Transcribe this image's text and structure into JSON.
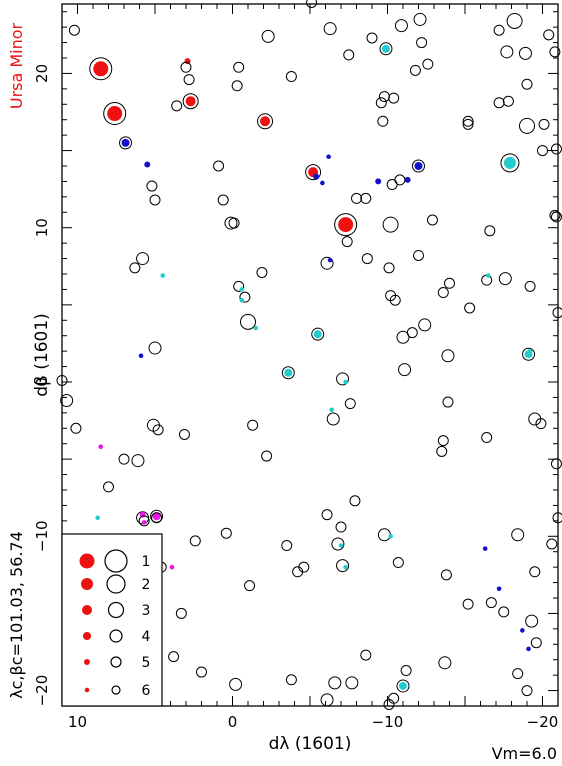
{
  "chart_data": {
    "type": "scatter",
    "title": "",
    "xlabel": "dλ (1601)",
    "ylabel": "dβ (1601)",
    "xlim": [
      11,
      -21
    ],
    "ylim": [
      -21,
      24.5
    ],
    "x_ticks": [
      10,
      0,
      -10,
      -20
    ],
    "y_ticks": [
      -20,
      -10,
      0,
      10,
      20
    ],
    "x_tick_labels": [
      "10",
      "0",
      "−10",
      "−20"
    ],
    "y_tick_labels": [
      "−20",
      "−10",
      "0",
      "10",
      "20"
    ],
    "grid": false,
    "constellation_label": "Ursa Minor",
    "center_label": "λc,βc=101.03,  56.74",
    "vm_label": "Vm=6.0",
    "colors": {
      "red": "#ee1111",
      "blue": "#1111cc",
      "cyan": "#22cccc",
      "magenta": "#ee11ee",
      "outline": "#000000"
    },
    "legend": {
      "placement": "bottom-left",
      "entries": [
        {
          "label": "1",
          "magnitude": 1
        },
        {
          "label": "2",
          "magnitude": 2
        },
        {
          "label": "3",
          "magnitude": 3
        },
        {
          "label": "4",
          "magnitude": 4
        },
        {
          "label": "5",
          "magnitude": 5
        },
        {
          "label": "6",
          "magnitude": 6
        }
      ]
    },
    "stars": [
      [
        10.2,
        22.8,
        5,
        null
      ],
      [
        8.5,
        20.3,
        1,
        "red"
      ],
      [
        8.5,
        20.3,
        5,
        "red"
      ],
      [
        7.6,
        17.4,
        1,
        "red"
      ],
      [
        6.9,
        15.5,
        4,
        "blue"
      ],
      [
        5.5,
        14.1,
        5,
        "blue"
      ],
      [
        5.2,
        12.7,
        5,
        null
      ],
      [
        5.0,
        11.8,
        5,
        null
      ],
      [
        2.9,
        20.8,
        5,
        "red"
      ],
      [
        3.0,
        20.4,
        5,
        null
      ],
      [
        2.8,
        19.6,
        5,
        null
      ],
      [
        3.6,
        17.9,
        5,
        null
      ],
      [
        2.7,
        18.2,
        3,
        "red"
      ],
      [
        -0.4,
        20.4,
        5,
        null
      ],
      [
        -0.3,
        19.2,
        5,
        null
      ],
      [
        -2.3,
        22.4,
        4,
        null
      ],
      [
        -3.8,
        19.8,
        5,
        null
      ],
      [
        -5.1,
        24.6,
        5,
        null
      ],
      [
        -6.3,
        22.9,
        4,
        null
      ],
      [
        -2.1,
        16.9,
        3,
        "red"
      ],
      [
        -5.2,
        13.6,
        3,
        "red"
      ],
      [
        -5.4,
        13.3,
        5,
        "blue"
      ],
      [
        -5.8,
        12.9,
        6,
        "blue"
      ],
      [
        -6.2,
        14.6,
        6,
        "blue"
      ],
      [
        -7.5,
        21.2,
        5,
        null
      ],
      [
        -9.0,
        22.3,
        5,
        null
      ],
      [
        -9.9,
        21.6,
        4,
        "cyan"
      ],
      [
        -10.9,
        23.1,
        4,
        null
      ],
      [
        -9.8,
        18.5,
        5,
        null
      ],
      [
        -9.6,
        18.1,
        5,
        null
      ],
      [
        -10.4,
        18.4,
        5,
        null
      ],
      [
        -11.8,
        20.2,
        5,
        null
      ],
      [
        -12.6,
        20.6,
        5,
        null
      ],
      [
        -12.2,
        22.0,
        5,
        null
      ],
      [
        -12.1,
        23.5,
        4,
        null
      ],
      [
        -9.7,
        16.9,
        5,
        null
      ],
      [
        -9.4,
        13.0,
        5,
        "blue"
      ],
      [
        -11.3,
        13.1,
        5,
        "blue"
      ],
      [
        -12.0,
        14.0,
        4,
        "blue"
      ],
      [
        -15.2,
        16.9,
        5,
        null
      ],
      [
        -15.2,
        16.7,
        5,
        null
      ],
      [
        -17.2,
        22.8,
        5,
        null
      ],
      [
        -17.7,
        21.4,
        4,
        null
      ],
      [
        -18.2,
        23.4,
        3,
        null
      ],
      [
        -18.9,
        21.3,
        4,
        null
      ],
      [
        -19.0,
        19.3,
        5,
        null
      ],
      [
        -20.4,
        22.5,
        5,
        null
      ],
      [
        -20.8,
        21.4,
        5,
        null
      ],
      [
        -17.2,
        18.1,
        5,
        null
      ],
      [
        -17.8,
        18.2,
        5,
        null
      ],
      [
        -19.0,
        16.6,
        3,
        null
      ],
      [
        -17.9,
        14.2,
        2,
        "cyan"
      ],
      [
        -20.0,
        15.0,
        5,
        null
      ],
      [
        -20.9,
        15.1,
        5,
        null
      ],
      [
        -20.1,
        16.7,
        5,
        null
      ],
      [
        -20.8,
        10.8,
        5,
        null
      ],
      [
        -20.9,
        10.7,
        5,
        null
      ],
      [
        -16.6,
        9.8,
        5,
        null
      ],
      [
        -7.3,
        10.2,
        1,
        "red"
      ],
      [
        -10.2,
        10.2,
        3,
        null
      ],
      [
        -12.9,
        10.5,
        5,
        null
      ],
      [
        -8.0,
        11.9,
        5,
        null
      ],
      [
        -8.6,
        11.9,
        5,
        null
      ],
      [
        -10.3,
        12.8,
        5,
        null
      ],
      [
        -10.8,
        13.1,
        5,
        null
      ],
      [
        0.9,
        14.0,
        5,
        null
      ],
      [
        0.6,
        11.8,
        5,
        null
      ],
      [
        0.1,
        10.3,
        4,
        null
      ],
      [
        -0.1,
        10.3,
        5,
        null
      ],
      [
        -6.1,
        7.7,
        4,
        null
      ],
      [
        -6.3,
        7.9,
        6,
        "blue"
      ],
      [
        -7.4,
        9.1,
        5,
        null
      ],
      [
        -8.7,
        8.0,
        5,
        null
      ],
      [
        -10.1,
        7.4,
        5,
        null
      ],
      [
        -12.0,
        8.2,
        5,
        null
      ],
      [
        -10.2,
        5.6,
        5,
        null
      ],
      [
        -10.5,
        5.3,
        5,
        null
      ],
      [
        -13.6,
        5.8,
        5,
        null
      ],
      [
        -14.0,
        6.4,
        5,
        null
      ],
      [
        -15.3,
        4.8,
        5,
        null
      ],
      [
        -16.4,
        6.6,
        5,
        null
      ],
      [
        -17.6,
        6.7,
        4,
        null
      ],
      [
        -19.2,
        6.2,
        5,
        null
      ],
      [
        -21.0,
        4.5,
        5,
        null
      ],
      [
        -16.5,
        6.9,
        6,
        "cyan"
      ],
      [
        5.8,
        8.0,
        4,
        null
      ],
      [
        6.3,
        7.4,
        5,
        null
      ],
      [
        4.5,
        6.9,
        6,
        "cyan"
      ],
      [
        -0.4,
        6.2,
        5,
        null
      ],
      [
        -0.6,
        6.0,
        6,
        "cyan"
      ],
      [
        -0.8,
        5.5,
        5,
        null
      ],
      [
        -0.6,
        5.3,
        6,
        "cyan"
      ],
      [
        -1.9,
        7.1,
        5,
        null
      ],
      [
        -1.0,
        3.9,
        3,
        null
      ],
      [
        -1.5,
        3.5,
        6,
        "cyan"
      ],
      [
        -5.5,
        3.1,
        4,
        "cyan"
      ],
      [
        5.9,
        1.7,
        6,
        "blue"
      ],
      [
        5.0,
        2.2,
        4,
        null
      ],
      [
        -3.6,
        0.6,
        4,
        "cyan"
      ],
      [
        -7.1,
        0.2,
        4,
        null
      ],
      [
        -7.3,
        0.0,
        6,
        "cyan"
      ],
      [
        -11.0,
        2.9,
        4,
        null
      ],
      [
        -11.6,
        3.2,
        5,
        null
      ],
      [
        -12.4,
        3.7,
        4,
        null
      ],
      [
        -11.1,
        0.8,
        4,
        null
      ],
      [
        -13.9,
        1.7,
        4,
        null
      ],
      [
        -19.1,
        1.8,
        4,
        "cyan"
      ],
      [
        -19.2,
        2.0,
        6,
        "cyan"
      ],
      [
        11.0,
        0.1,
        5,
        null
      ],
      [
        10.7,
        -1.2,
        4,
        null
      ],
      [
        10.1,
        -3.0,
        5,
        null
      ],
      [
        8.5,
        -4.2,
        6,
        "magenta"
      ],
      [
        7.0,
        -5.0,
        5,
        null
      ],
      [
        6.1,
        -5.1,
        4,
        null
      ],
      [
        5.1,
        -2.8,
        4,
        null
      ],
      [
        4.8,
        -3.1,
        5,
        null
      ],
      [
        3.1,
        -3.4,
        5,
        null
      ],
      [
        -1.3,
        -2.8,
        5,
        null
      ],
      [
        -2.2,
        -4.8,
        5,
        null
      ],
      [
        -6.4,
        -1.8,
        6,
        "cyan"
      ],
      [
        -6.5,
        -2.4,
        4,
        null
      ],
      [
        -7.6,
        -1.4,
        5,
        null
      ],
      [
        -13.6,
        -3.8,
        5,
        null
      ],
      [
        -13.5,
        -4.5,
        5,
        null
      ],
      [
        -13.9,
        -1.3,
        5,
        null
      ],
      [
        -16.4,
        -3.6,
        5,
        null
      ],
      [
        -19.5,
        -2.4,
        4,
        null
      ],
      [
        -19.9,
        -2.7,
        5,
        null
      ],
      [
        -20.9,
        -5.3,
        5,
        null
      ],
      [
        8.0,
        -6.8,
        5,
        null
      ],
      [
        8.7,
        -8.8,
        6,
        "cyan"
      ],
      [
        5.8,
        -8.8,
        4,
        null
      ],
      [
        5.8,
        -8.6,
        5,
        "magenta"
      ],
      [
        5.7,
        -9.0,
        5,
        null
      ],
      [
        5.7,
        -9.1,
        6,
        "magenta"
      ],
      [
        4.9,
        -8.7,
        4,
        "magenta"
      ],
      [
        4.9,
        -8.8,
        5,
        null
      ],
      [
        2.4,
        -10.3,
        5,
        null
      ],
      [
        0.4,
        -9.8,
        5,
        null
      ],
      [
        -6.1,
        -8.6,
        5,
        null
      ],
      [
        -7.0,
        -9.4,
        5,
        null
      ],
      [
        -7.9,
        -7.7,
        5,
        null
      ],
      [
        -9.8,
        -9.9,
        4,
        null
      ],
      [
        -10.2,
        -10.0,
        6,
        "cyan"
      ],
      [
        -6.8,
        -10.5,
        4,
        null
      ],
      [
        -7.0,
        -10.6,
        6,
        "cyan"
      ],
      [
        -3.5,
        -10.6,
        5,
        null
      ],
      [
        -7.1,
        -11.9,
        4,
        null
      ],
      [
        -7.3,
        -12.0,
        6,
        "cyan"
      ],
      [
        -10.7,
        -11.7,
        5,
        null
      ],
      [
        -13.8,
        -12.5,
        5,
        null
      ],
      [
        -16.3,
        -10.8,
        6,
        "blue"
      ],
      [
        -18.4,
        -9.9,
        4,
        null
      ],
      [
        -20.6,
        -10.5,
        5,
        null
      ],
      [
        -21.0,
        -8.8,
        5,
        null
      ],
      [
        -19.5,
        -12.3,
        5,
        null
      ],
      [
        -17.2,
        -13.4,
        6,
        "blue"
      ],
      [
        -16.7,
        -14.3,
        5,
        null
      ],
      [
        -15.2,
        -14.4,
        5,
        null
      ],
      [
        -17.5,
        -14.9,
        5,
        null
      ],
      [
        -18.7,
        -16.1,
        6,
        "blue"
      ],
      [
        -19.3,
        -15.5,
        4,
        null
      ],
      [
        -19.6,
        -16.9,
        5,
        null
      ],
      [
        -19.1,
        -17.3,
        6,
        "blue"
      ],
      [
        4.6,
        -12.0,
        5,
        null
      ],
      [
        3.9,
        -12.0,
        6,
        "magenta"
      ],
      [
        -1.1,
        -13.2,
        5,
        null
      ],
      [
        -4.2,
        -12.3,
        5,
        null
      ],
      [
        -4.6,
        -12.0,
        5,
        null
      ],
      [
        3.3,
        -15.0,
        5,
        null
      ],
      [
        3.8,
        -17.8,
        5,
        null
      ],
      [
        2.0,
        -18.8,
        5,
        null
      ],
      [
        -0.2,
        -19.6,
        4,
        null
      ],
      [
        -3.8,
        -19.3,
        5,
        null
      ],
      [
        -6.1,
        -20.6,
        4,
        null
      ],
      [
        -6.6,
        -19.5,
        4,
        null
      ],
      [
        -7.7,
        -19.5,
        4,
        null
      ],
      [
        -8.6,
        -17.7,
        5,
        null
      ],
      [
        -10.4,
        -20.5,
        5,
        null
      ],
      [
        -10.1,
        -20.9,
        5,
        null
      ],
      [
        -11.0,
        -19.7,
        4,
        "cyan"
      ],
      [
        -11.2,
        -18.7,
        5,
        null
      ],
      [
        -13.7,
        -18.2,
        4,
        null
      ],
      [
        -18.4,
        -18.9,
        5,
        null
      ],
      [
        -19.0,
        -20.0,
        5,
        null
      ]
    ]
  }
}
